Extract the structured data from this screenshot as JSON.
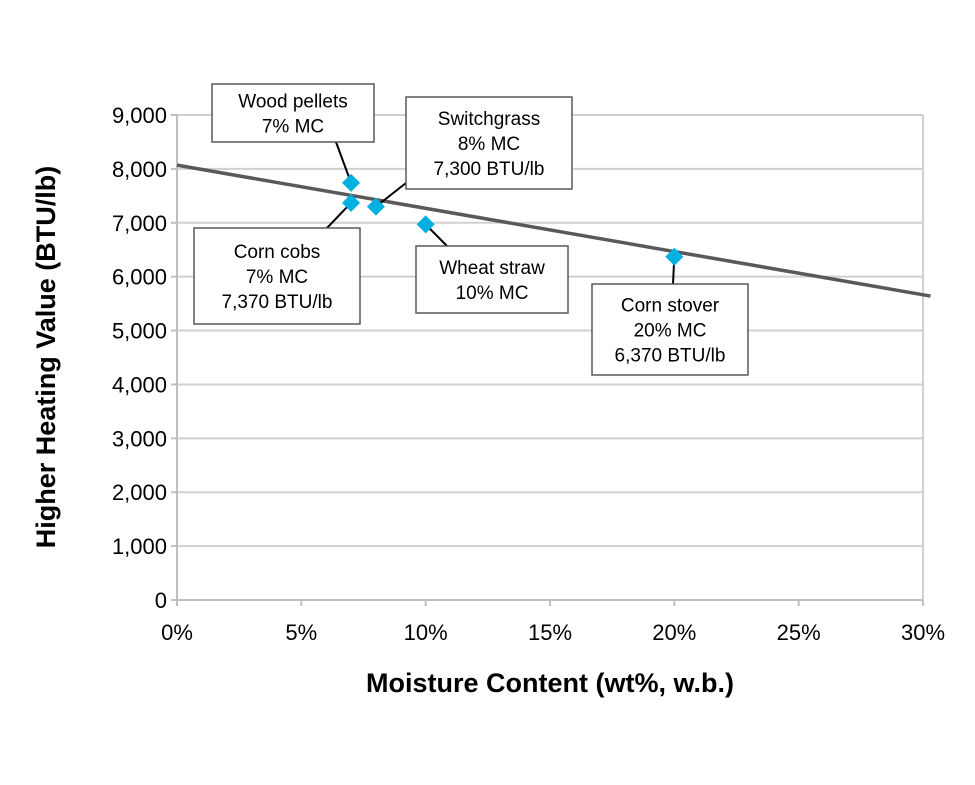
{
  "chart_data": {
    "type": "scatter",
    "title": "",
    "xlabel": "Moisture Content (wt%, w.b.)",
    "ylabel": "Higher Heating Value (BTU/lb)",
    "xlim": [
      0,
      30
    ],
    "ylim": [
      0,
      9000
    ],
    "x_ticks": [
      "0%",
      "5%",
      "10%",
      "15%",
      "20%",
      "25%",
      "30%"
    ],
    "x_tick_values": [
      0,
      5,
      10,
      15,
      20,
      25,
      30
    ],
    "y_ticks": [
      "0",
      "1,000",
      "2,000",
      "3,000",
      "4,000",
      "5,000",
      "6,000",
      "7,000",
      "8,000",
      "9,000"
    ],
    "y_tick_values": [
      0,
      1000,
      2000,
      3000,
      4000,
      5000,
      6000,
      7000,
      8000,
      9000
    ],
    "grid": "horizontal",
    "marker_color": "#00B0E0",
    "trendline_color": "#595959",
    "points": [
      {
        "x": 7,
        "y": 7740,
        "label": [
          "Wood pellets",
          "7% MC"
        ]
      },
      {
        "x": 7,
        "y": 7370,
        "label": [
          "Corn cobs",
          "7% MC",
          "7,370 BTU/lb"
        ]
      },
      {
        "x": 8,
        "y": 7300,
        "label": [
          "Switchgrass",
          "8% MC",
          "7,300 BTU/lb"
        ]
      },
      {
        "x": 10,
        "y": 6970,
        "label": [
          "Wheat straw",
          "10% MC"
        ]
      },
      {
        "x": 20,
        "y": 6370,
        "label": [
          "Corn stover",
          "20% MC",
          "6,370 BTU/lb"
        ]
      }
    ],
    "trendline": {
      "type": "linear",
      "x": [
        0,
        30.3
      ],
      "y": [
        8070,
        5640
      ]
    }
  }
}
